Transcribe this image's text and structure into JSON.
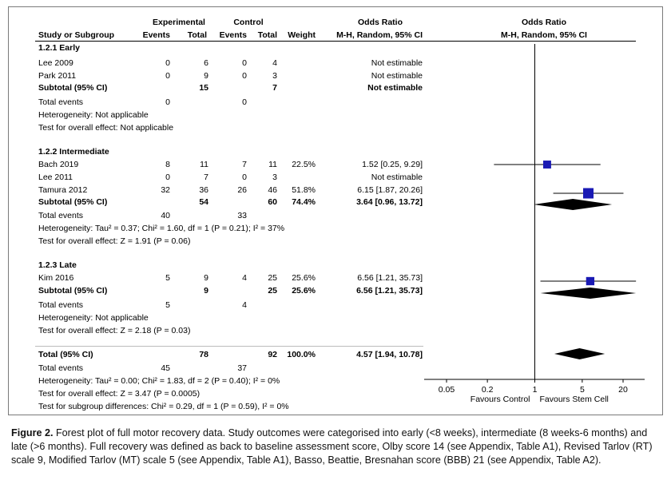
{
  "header": {
    "group_experimental": "Experimental",
    "group_control": "Control",
    "or_title_left": "Odds Ratio",
    "or_title_right": "Odds Ratio",
    "col_study": "Study or Subgroup",
    "col_events_e": "Events",
    "col_total_e": "Total",
    "col_events_c": "Events",
    "col_total_c": "Total",
    "col_weight": "Weight",
    "col_method_left": "M-H, Random, 95% CI",
    "col_method_right": "M-H, Random, 95% CI"
  },
  "rows": [
    {
      "kind": "heading",
      "study": "1.2.1 Early"
    },
    {
      "kind": "study",
      "study": "Lee 2009",
      "ee": "0",
      "te": "6",
      "ec": "0",
      "tc": "4",
      "weight": "",
      "ci": "Not estimable"
    },
    {
      "kind": "study",
      "study": "Park 2011",
      "ee": "0",
      "te": "9",
      "ec": "0",
      "tc": "3",
      "weight": "",
      "ci": "Not estimable"
    },
    {
      "kind": "subtotal",
      "study": "Subtotal (95% CI)",
      "ee": "",
      "te": "15",
      "ec": "",
      "tc": "7",
      "weight": "",
      "ci": "Not estimable"
    },
    {
      "kind": "events",
      "study": "Total events",
      "ee": "0",
      "ec": "0"
    },
    {
      "kind": "note",
      "study": "Heterogeneity: Not applicable"
    },
    {
      "kind": "note",
      "study": "Test for overall effect: Not applicable"
    },
    {
      "kind": "heading",
      "study": "1.2.2 Intermediate"
    },
    {
      "kind": "study",
      "study": "Bach 2019",
      "ee": "8",
      "te": "11",
      "ec": "7",
      "tc": "11",
      "weight": "22.5%",
      "ci": "1.52 [0.25, 9.29]"
    },
    {
      "kind": "study",
      "study": "Lee 2011",
      "ee": "0",
      "te": "7",
      "ec": "0",
      "tc": "3",
      "weight": "",
      "ci": "Not estimable"
    },
    {
      "kind": "study",
      "study": "Tamura 2012",
      "ee": "32",
      "te": "36",
      "ec": "26",
      "tc": "46",
      "weight": "51.8%",
      "ci": "6.15 [1.87, 20.26]"
    },
    {
      "kind": "subtotal",
      "study": "Subtotal (95% CI)",
      "ee": "",
      "te": "54",
      "ec": "",
      "tc": "60",
      "weight": "74.4%",
      "ci": "3.64 [0.96, 13.72]"
    },
    {
      "kind": "events",
      "study": "Total events",
      "ee": "40",
      "ec": "33"
    },
    {
      "kind": "note",
      "study": "Heterogeneity: Tau² = 0.37; Chi² = 1.60, df = 1 (P = 0.21); I² = 37%"
    },
    {
      "kind": "note",
      "study": "Test for overall effect: Z = 1.91 (P = 0.06)"
    },
    {
      "kind": "heading",
      "study": "1.2.3 Late"
    },
    {
      "kind": "study",
      "study": "Kim 2016",
      "ee": "5",
      "te": "9",
      "ec": "4",
      "tc": "25",
      "weight": "25.6%",
      "ci": "6.56 [1.21, 35.73]"
    },
    {
      "kind": "subtotal",
      "study": "Subtotal (95% CI)",
      "ee": "",
      "te": "9",
      "ec": "",
      "tc": "25",
      "weight": "25.6%",
      "ci": "6.56 [1.21, 35.73]"
    },
    {
      "kind": "events",
      "study": "Total events",
      "ee": "5",
      "ec": "4"
    },
    {
      "kind": "note",
      "study": "Heterogeneity: Not applicable"
    },
    {
      "kind": "note",
      "study": "Test for overall effect: Z = 2.18 (P = 0.03)"
    },
    {
      "kind": "total",
      "study": "Total (95% CI)",
      "ee": "",
      "te": "78",
      "ec": "",
      "tc": "92",
      "weight": "100.0%",
      "ci": "4.57 [1.94, 10.78]"
    },
    {
      "kind": "events",
      "study": "Total events",
      "ee": "45",
      "ec": "37"
    },
    {
      "kind": "note",
      "study": "Heterogeneity: Tau² = 0.00; Chi² = 1.83, df = 2 (P = 0.40); I² = 0%"
    },
    {
      "kind": "note",
      "study": "Test for overall effect: Z = 3.47 (P = 0.0005)"
    },
    {
      "kind": "note",
      "study": "Test for subgroup differences: Chi² = 0.29, df = 1 (P = 0.59), I² = 0%"
    }
  ],
  "chart_data": {
    "type": "forest",
    "scale": "log",
    "xlim": [
      0.05,
      20
    ],
    "ticks": [
      "0.05",
      "0.2",
      "1",
      "5",
      "20"
    ],
    "tick_values": [
      0.05,
      0.2,
      1,
      5,
      20
    ],
    "favours_left": "Favours Control",
    "favours_right": "Favours Stem Cell",
    "square_color": "#1a1ab4",
    "diamond_color": "#000000",
    "studies": [
      {
        "name": "Bach 2019",
        "or": 1.52,
        "lo": 0.25,
        "hi": 9.29,
        "weight": 22.5
      },
      {
        "name": "Tamura 2012",
        "or": 6.15,
        "lo": 1.87,
        "hi": 20.26,
        "weight": 51.8
      },
      {
        "name": "Kim 2016",
        "or": 6.56,
        "lo": 1.21,
        "hi": 35.73,
        "weight": 25.6
      }
    ],
    "diamonds": [
      {
        "name": "Subtotal Intermediate",
        "or": 3.64,
        "lo": 0.96,
        "hi": 13.72
      },
      {
        "name": "Subtotal Late",
        "or": 6.56,
        "lo": 1.21,
        "hi": 35.73
      },
      {
        "name": "Total",
        "or": 4.57,
        "lo": 1.94,
        "hi": 10.78
      }
    ]
  },
  "caption": {
    "label": "Figure 2.",
    "text": "Forest plot of full motor recovery data. Study outcomes were categorised into early (<8 weeks), intermediate (8 weeks-6 months) and late (>6 months). Full recovery was defined as back to baseline assessment score, Olby score 14 (see Appendix, Table A1), Revised Tarlov (RT) scale 9, Modified Tarlov (MT) scale 5 (see Appendix, Table A1), Basso, Beattie, Bresnahan score (BBB) 21 (see Appendix, Table A2)."
  }
}
